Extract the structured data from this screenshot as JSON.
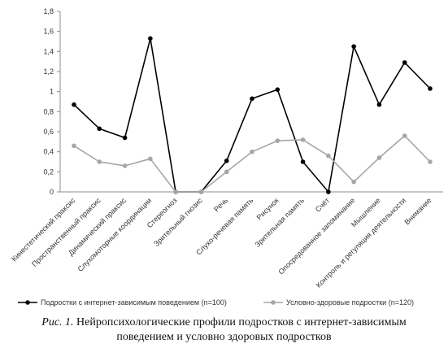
{
  "chart_data": {
    "type": "line",
    "categories": [
      "Кинестетический праксис",
      "Пространственный праксис",
      "Динамический праксис",
      "Слухомоторные координации",
      "Стереогноз",
      "Зрительный гнозис",
      "Речь",
      "Слухо-речевая память",
      "Рисунок",
      "Зрительная память",
      "Счёт",
      "Опосредованное запоминание",
      "Мышление",
      "Контроль и регуляция деятельности",
      "Внимание"
    ],
    "series": [
      {
        "name": "Подростки с интернет-зависимым поведением (n=100)",
        "color": "#000000",
        "values": [
          0.87,
          0.63,
          0.54,
          1.53,
          0.0,
          0.0,
          0.31,
          0.93,
          1.02,
          0.3,
          0.0,
          1.45,
          0.87,
          1.29,
          1.03
        ]
      },
      {
        "name": "Условно-здоровые подростки (n=120)",
        "color": "#a6a6a6",
        "values": [
          0.46,
          0.3,
          0.26,
          0.33,
          0.0,
          0.0,
          0.2,
          0.4,
          0.51,
          0.52,
          0.36,
          0.1,
          0.34,
          0.56,
          0.3
        ]
      }
    ],
    "yticks": [
      "0",
      "0,2",
      "0,4",
      "0,6",
      "0,8",
      "1",
      "1,2",
      "1,4",
      "1,6",
      "1,8"
    ],
    "ylim": [
      0,
      1.8
    ],
    "grid": false,
    "legend_position": "bottom",
    "title": "",
    "xlabel": "",
    "ylabel": ""
  },
  "caption": {
    "label": "Рис. 1.",
    "line1": "Нейропсихологические профили подростков с интернет-зависимым",
    "line2": "поведением и условно здоровых подростков"
  }
}
